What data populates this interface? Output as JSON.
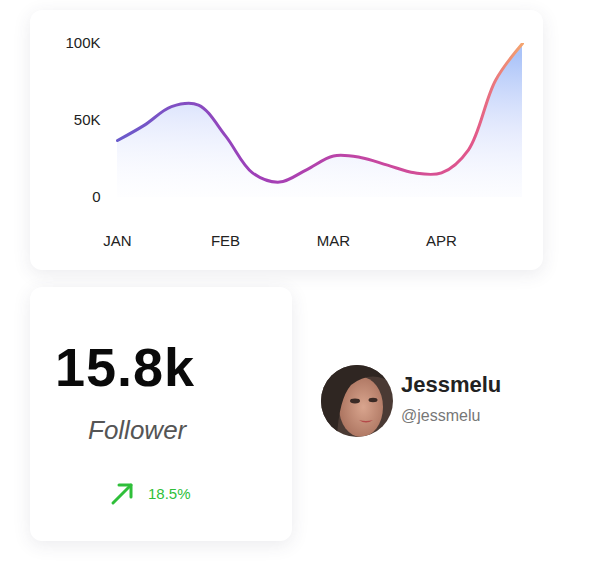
{
  "chart_data": {
    "type": "area",
    "categories": [
      "JAN",
      null,
      null,
      null,
      "FEB",
      null,
      null,
      null,
      "MAR",
      null,
      null,
      null,
      "APR",
      null,
      null,
      null
    ],
    "values": [
      37000,
      47000,
      59000,
      60000,
      40000,
      16000,
      10000,
      18000,
      27000,
      26000,
      21000,
      16000,
      16000,
      31000,
      76000,
      100000
    ],
    "color": "#6a5bcb",
    "ylim": [
      0,
      100000
    ],
    "yticks": [
      0,
      {
        "value": 50000,
        "label": "50K"
      },
      {
        "value": 100000,
        "label": "100K"
      }
    ],
    "grid": false
  },
  "stats": {
    "value": "15.8k",
    "label": "Follower",
    "change": "18.5%"
  },
  "profile": {
    "name": "Jessmelu",
    "handle": "@jessmelu"
  }
}
